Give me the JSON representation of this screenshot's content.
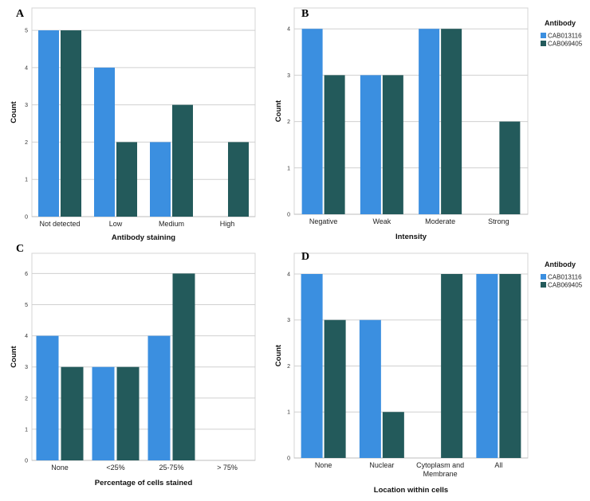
{
  "legend": {
    "title": "Antibody",
    "entries": [
      {
        "name": "CAB013116",
        "color": "#3b8fe0"
      },
      {
        "name": "CAB069405",
        "color": "#235a5b"
      }
    ]
  },
  "chart_data": [
    {
      "panel": "A",
      "type": "bar",
      "title": "",
      "xlabel": "Antibody staining",
      "ylabel": "Count",
      "categories": [
        "Not detected",
        "Low",
        "Medium",
        "High"
      ],
      "series": [
        {
          "name": "CAB013116",
          "values": [
            5,
            4,
            2,
            0
          ]
        },
        {
          "name": "CAB069405",
          "values": [
            5,
            2,
            3,
            2
          ]
        }
      ],
      "yticks": [
        0,
        1,
        2,
        3,
        4,
        5
      ],
      "ylim": [
        0,
        5.6
      ],
      "grid": true,
      "legend": "none"
    },
    {
      "panel": "B",
      "type": "bar",
      "title": "",
      "xlabel": "Intensity",
      "ylabel": "Count",
      "categories": [
        "Negative",
        "Weak",
        "Moderate",
        "Strong"
      ],
      "series": [
        {
          "name": "CAB013116",
          "values": [
            4,
            3,
            4,
            0
          ]
        },
        {
          "name": "CAB069405",
          "values": [
            3,
            3,
            4,
            2
          ]
        }
      ],
      "yticks": [
        0,
        1,
        2,
        3,
        4
      ],
      "ylim": [
        0,
        4.45
      ],
      "grid": true,
      "legend": "right"
    },
    {
      "panel": "C",
      "type": "bar",
      "title": "",
      "xlabel": "Percentage of cells stained",
      "ylabel": "Count",
      "categories": [
        "None",
        "<25%",
        "25-75%",
        "> 75%"
      ],
      "series": [
        {
          "name": "CAB013116",
          "values": [
            4,
            3,
            4,
            0
          ]
        },
        {
          "name": "CAB069405",
          "values": [
            3,
            3,
            6,
            0
          ]
        }
      ],
      "yticks": [
        0,
        1,
        2,
        3,
        4,
        5,
        6
      ],
      "ylim": [
        0,
        6.65
      ],
      "grid": true,
      "legend": "none"
    },
    {
      "panel": "D",
      "type": "bar",
      "title": "",
      "xlabel": "Location within cells",
      "ylabel": "Count",
      "categories": [
        [
          "None"
        ],
        [
          "Nuclear"
        ],
        [
          "Cytoplasm and",
          "Membrane"
        ],
        [
          "All"
        ]
      ],
      "series": [
        {
          "name": "CAB013116",
          "values": [
            4,
            3,
            0,
            4
          ]
        },
        {
          "name": "CAB069405",
          "values": [
            3,
            1,
            4,
            4
          ]
        }
      ],
      "yticks": [
        0,
        1,
        2,
        3,
        4
      ],
      "ylim": [
        0,
        4.45
      ],
      "grid": true,
      "legend": "right"
    }
  ]
}
